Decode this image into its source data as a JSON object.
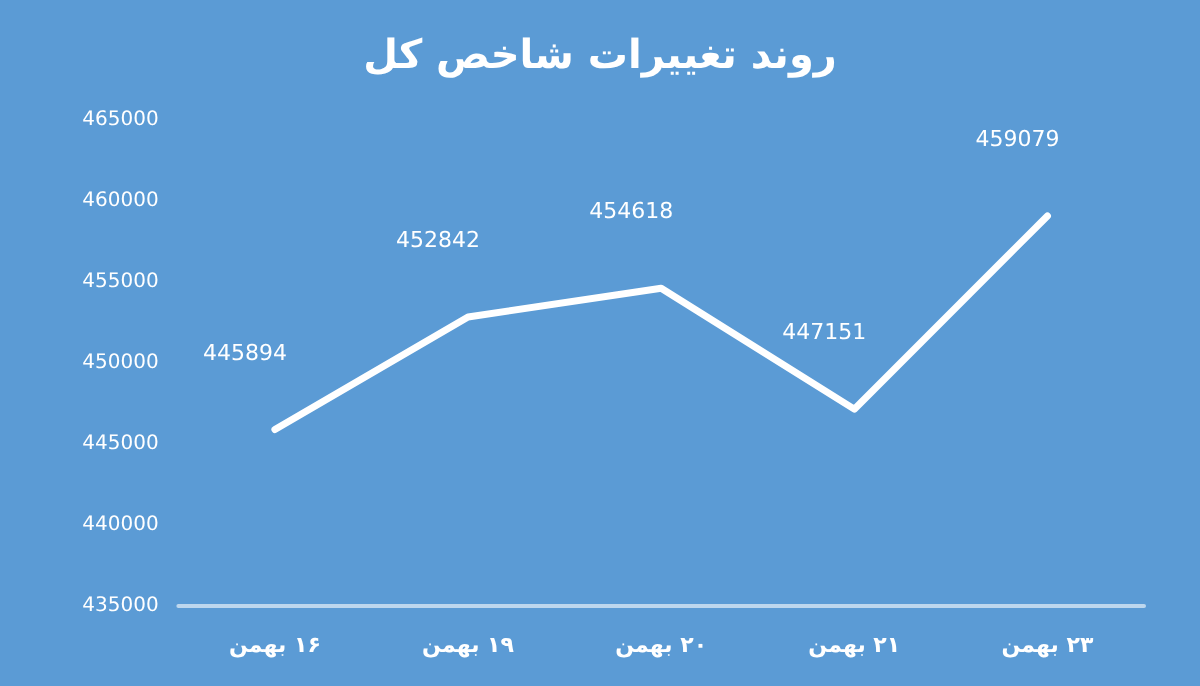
{
  "chart_data": {
    "type": "line",
    "title": "روند تغییرات شاخص کل",
    "categories": [
      "۱۶ بهمن",
      "۱۹ بهمن",
      "۲۰ بهمن",
      "۲۱ بهمن",
      "۲۳ بهمن"
    ],
    "series": [
      {
        "color": "#ffffff",
        "values": [
          445894,
          452842,
          454618,
          447151,
          459079
        ]
      }
    ],
    "ylim": [
      435000,
      465000
    ],
    "yticks": [
      435000,
      440000,
      445000,
      450000,
      455000,
      460000,
      465000
    ],
    "grid": false,
    "marker": "none",
    "line_style": "solid",
    "data_labels": true
  }
}
